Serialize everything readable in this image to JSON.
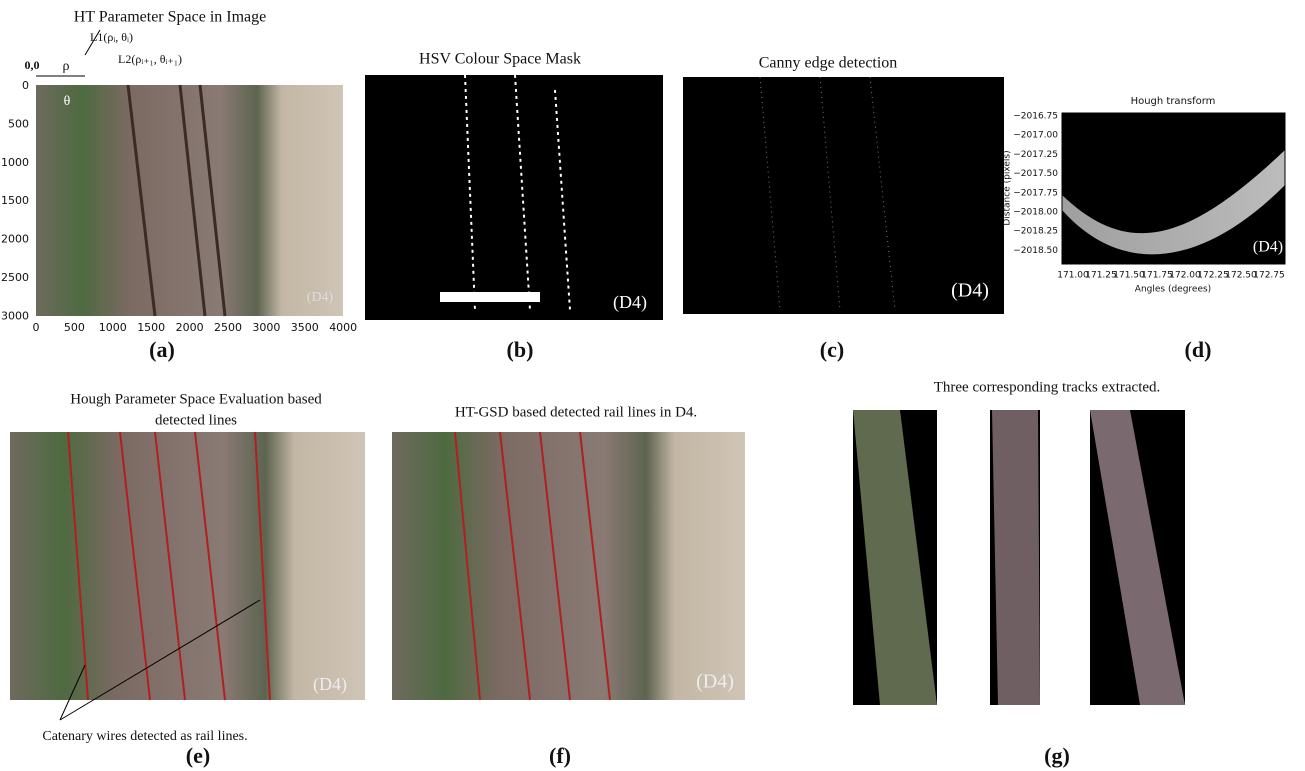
{
  "panels": [
    {
      "label": "(a)",
      "title": "HT Parameter Space in Image",
      "origin": "0,0",
      "rho": "ρ",
      "theta": "θ",
      "line1": "L1(ρᵢ, θᵢ)",
      "line2": "L2(ρᵢ₊₁, θᵢ₊₁)",
      "dataset": "(D4)",
      "xticks": [
        "0",
        "500",
        "1000",
        "1500",
        "2000",
        "2500",
        "3000",
        "3500",
        "4000"
      ],
      "yticks": [
        "0",
        "500",
        "1000",
        "1500",
        "2000",
        "2500",
        "3000"
      ]
    },
    {
      "label": "(b)",
      "title": "HSV Colour Space Mask",
      "dataset": "(D4)"
    },
    {
      "label": "(c)",
      "title": "Canny edge detection",
      "dataset": "(D4)"
    },
    {
      "label": "(d)",
      "title": "Hough transform",
      "xlabel": "Angles (degrees)",
      "ylabel": "Distance (pixels)",
      "dataset": "(D4)",
      "xticks": [
        "171.00",
        "171.25",
        "171.50",
        "171.75",
        "172.00",
        "172.25",
        "172.50",
        "172.75"
      ],
      "yticks": [
        "−2016.75",
        "−2017.00",
        "−2017.25",
        "−2017.50",
        "−2017.75",
        "−2018.00",
        "−2018.25",
        "−2018.50"
      ]
    },
    {
      "label": "(e)",
      "title_lines": [
        "Hough Parameter Space Evaluation based",
        "detected lines"
      ],
      "annotation": "Catenary wires detected as rail lines.",
      "dataset": "(D4)"
    },
    {
      "label": "(f)",
      "title": "HT-GSD based detected rail lines in D4.",
      "dataset": "(D4)"
    },
    {
      "label": "(g)",
      "title": "Three corresponding tracks extracted."
    }
  ]
}
